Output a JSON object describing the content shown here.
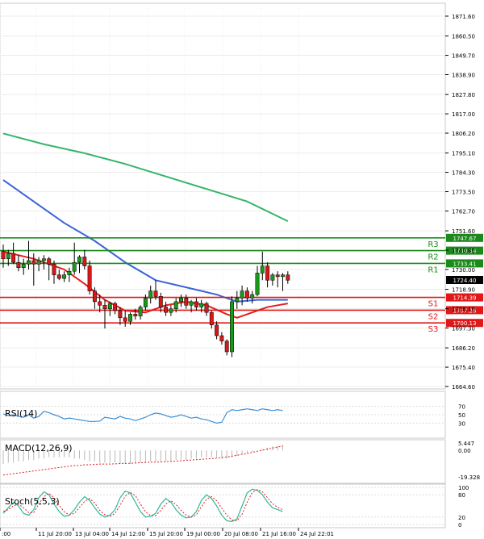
{
  "chart_data": {
    "type": "candlestick",
    "price_axis": {
      "ticks": [
        "1871.60",
        "1860.50",
        "1849.70",
        "1838.90",
        "1827.80",
        "1817.00",
        "1806.20",
        "1795.10",
        "1784.30",
        "1773.50",
        "1762.70",
        "1751.60",
        "1740.80",
        "1730.00",
        "1718.90",
        "1708.10",
        "1697.30",
        "1686.20",
        "1675.40",
        "1664.60"
      ],
      "range": [
        1664.6,
        1871.6
      ],
      "current_price": "1724.40"
    },
    "time_axis": {
      "labels": [
        ":00",
        "11 Jul 20:00",
        "13 Jul 04:00",
        "14 Jul 12:00",
        "15 Jul 20:00",
        "19 Jul 00:00",
        "20 Jul 08:00",
        "21 Jul 16:00",
        "24 Jul 22:01"
      ]
    },
    "levels": [
      {
        "name": "R3",
        "value": 1747.67,
        "label": "1747.67",
        "color": "#1a8a1a"
      },
      {
        "name": "R2",
        "value": 1740.54,
        "label": "1740.54",
        "color": "#1a8a1a"
      },
      {
        "name": "R1",
        "value": 1733.41,
        "label": "1733.41",
        "color": "#1a8a1a"
      },
      {
        "name": "S1",
        "value": 1714.39,
        "label": "1714.39",
        "color": "#e01818"
      },
      {
        "name": "S2",
        "value": 1707.26,
        "label": "1707.26",
        "color": "#e01818"
      },
      {
        "name": "S3",
        "value": 1700.13,
        "label": "1700.13",
        "color": "#e01818"
      }
    ],
    "candles": [
      {
        "o": 1740,
        "h": 1744,
        "l": 1731,
        "c": 1736
      },
      {
        "o": 1736,
        "h": 1741,
        "l": 1732,
        "c": 1739
      },
      {
        "o": 1739,
        "h": 1745,
        "l": 1733,
        "c": 1734
      },
      {
        "o": 1734,
        "h": 1738,
        "l": 1729,
        "c": 1731
      },
      {
        "o": 1731,
        "h": 1736,
        "l": 1727,
        "c": 1733
      },
      {
        "o": 1733,
        "h": 1746,
        "l": 1730,
        "c": 1735
      },
      {
        "o": 1735,
        "h": 1739,
        "l": 1721,
        "c": 1733
      },
      {
        "o": 1733,
        "h": 1737,
        "l": 1729,
        "c": 1735
      },
      {
        "o": 1735,
        "h": 1738,
        "l": 1730,
        "c": 1736
      },
      {
        "o": 1736,
        "h": 1737,
        "l": 1724,
        "c": 1733
      },
      {
        "o": 1733,
        "h": 1735,
        "l": 1722,
        "c": 1727
      },
      {
        "o": 1727,
        "h": 1730,
        "l": 1724,
        "c": 1725
      },
      {
        "o": 1725,
        "h": 1729,
        "l": 1723,
        "c": 1727
      },
      {
        "o": 1727,
        "h": 1731,
        "l": 1723,
        "c": 1729
      },
      {
        "o": 1729,
        "h": 1745,
        "l": 1727,
        "c": 1734
      },
      {
        "o": 1734,
        "h": 1738,
        "l": 1728,
        "c": 1737
      },
      {
        "o": 1737,
        "h": 1741,
        "l": 1730,
        "c": 1732
      },
      {
        "o": 1732,
        "h": 1735,
        "l": 1716,
        "c": 1718
      },
      {
        "o": 1718,
        "h": 1720,
        "l": 1708,
        "c": 1712
      },
      {
        "o": 1712,
        "h": 1716,
        "l": 1706,
        "c": 1710
      },
      {
        "o": 1710,
        "h": 1713,
        "l": 1697,
        "c": 1708
      },
      {
        "o": 1708,
        "h": 1712,
        "l": 1704,
        "c": 1711
      },
      {
        "o": 1711,
        "h": 1712,
        "l": 1705,
        "c": 1707
      },
      {
        "o": 1707,
        "h": 1709,
        "l": 1699,
        "c": 1703
      },
      {
        "o": 1703,
        "h": 1707,
        "l": 1698,
        "c": 1701
      },
      {
        "o": 1701,
        "h": 1706,
        "l": 1699,
        "c": 1705
      },
      {
        "o": 1705,
        "h": 1708,
        "l": 1702,
        "c": 1704
      },
      {
        "o": 1704,
        "h": 1710,
        "l": 1702,
        "c": 1709
      },
      {
        "o": 1709,
        "h": 1716,
        "l": 1707,
        "c": 1714
      },
      {
        "o": 1714,
        "h": 1721,
        "l": 1711,
        "c": 1718
      },
      {
        "o": 1718,
        "h": 1724,
        "l": 1713,
        "c": 1715
      },
      {
        "o": 1715,
        "h": 1717,
        "l": 1706,
        "c": 1709
      },
      {
        "o": 1709,
        "h": 1712,
        "l": 1704,
        "c": 1706
      },
      {
        "o": 1706,
        "h": 1710,
        "l": 1704,
        "c": 1708
      },
      {
        "o": 1708,
        "h": 1714,
        "l": 1706,
        "c": 1712
      },
      {
        "o": 1712,
        "h": 1716,
        "l": 1709,
        "c": 1714
      },
      {
        "o": 1714,
        "h": 1716,
        "l": 1708,
        "c": 1710
      },
      {
        "o": 1710,
        "h": 1713,
        "l": 1706,
        "c": 1712
      },
      {
        "o": 1712,
        "h": 1714,
        "l": 1707,
        "c": 1709
      },
      {
        "o": 1709,
        "h": 1713,
        "l": 1706,
        "c": 1711
      },
      {
        "o": 1711,
        "h": 1712,
        "l": 1704,
        "c": 1706
      },
      {
        "o": 1706,
        "h": 1707,
        "l": 1697,
        "c": 1699
      },
      {
        "o": 1699,
        "h": 1701,
        "l": 1691,
        "c": 1693
      },
      {
        "o": 1693,
        "h": 1695,
        "l": 1688,
        "c": 1690
      },
      {
        "o": 1690,
        "h": 1691,
        "l": 1682,
        "c": 1684
      },
      {
        "o": 1684,
        "h": 1715,
        "l": 1681,
        "c": 1712
      },
      {
        "o": 1712,
        "h": 1718,
        "l": 1708,
        "c": 1714
      },
      {
        "o": 1714,
        "h": 1721,
        "l": 1710,
        "c": 1718
      },
      {
        "o": 1718,
        "h": 1720,
        "l": 1712,
        "c": 1714
      },
      {
        "o": 1714,
        "h": 1718,
        "l": 1711,
        "c": 1716
      },
      {
        "o": 1716,
        "h": 1732,
        "l": 1715,
        "c": 1728
      },
      {
        "o": 1728,
        "h": 1740,
        "l": 1724,
        "c": 1732
      },
      {
        "o": 1732,
        "h": 1734,
        "l": 1720,
        "c": 1724
      },
      {
        "o": 1724,
        "h": 1728,
        "l": 1721,
        "c": 1727
      },
      {
        "o": 1727,
        "h": 1729,
        "l": 1720,
        "c": 1726
      },
      {
        "o": 1726,
        "h": 1728,
        "l": 1718,
        "c": 1727
      },
      {
        "o": 1727,
        "h": 1729,
        "l": 1722,
        "c": 1724
      }
    ],
    "moving_averages": [
      {
        "color": "#35b56a",
        "points": [
          [
            0,
            1806
          ],
          [
            8,
            1800
          ],
          [
            16,
            1795
          ],
          [
            24,
            1789
          ],
          [
            32,
            1782
          ],
          [
            40,
            1775
          ],
          [
            48,
            1768
          ],
          [
            56,
            1757
          ]
        ]
      },
      {
        "color": "#3b63d8",
        "points": [
          [
            0,
            1780
          ],
          [
            6,
            1768
          ],
          [
            12,
            1756
          ],
          [
            18,
            1746
          ],
          [
            24,
            1734
          ],
          [
            30,
            1724
          ],
          [
            36,
            1720
          ],
          [
            42,
            1716
          ],
          [
            46,
            1712
          ],
          [
            50,
            1713
          ],
          [
            56,
            1713
          ]
        ]
      },
      {
        "color": "#e02020",
        "points": [
          [
            0,
            1740
          ],
          [
            6,
            1736
          ],
          [
            12,
            1730
          ],
          [
            16,
            1722
          ],
          [
            20,
            1713
          ],
          [
            24,
            1707
          ],
          [
            28,
            1706
          ],
          [
            32,
            1710
          ],
          [
            36,
            1712
          ],
          [
            40,
            1710
          ],
          [
            44,
            1705
          ],
          [
            46,
            1703
          ],
          [
            48,
            1705
          ],
          [
            52,
            1709
          ],
          [
            56,
            1711
          ]
        ]
      }
    ],
    "rsi": {
      "label": "RSI(14)",
      "ticks": [
        "70",
        "50",
        "30"
      ],
      "range": [
        0,
        100
      ],
      "values": [
        52,
        48,
        50,
        46,
        44,
        50,
        42,
        46,
        58,
        55,
        50,
        46,
        40,
        42,
        40,
        38,
        36,
        34,
        34,
        35,
        44,
        42,
        40,
        46,
        42,
        40,
        36,
        40,
        44,
        50,
        54,
        52,
        48,
        44,
        46,
        50,
        46,
        42,
        44,
        40,
        38,
        34,
        30,
        32,
        55,
        62,
        60,
        62,
        64,
        62,
        60,
        64,
        62,
        60,
        62,
        60
      ]
    },
    "macd": {
      "label": "MACD(12,26,9)",
      "ticks": [
        "5.447",
        "0.00",
        "-19.328"
      ],
      "range": [
        -19.328,
        5.447
      ],
      "histogram": [
        -10,
        -9,
        -9,
        -8,
        -8,
        -7,
        -7,
        -6,
        -6,
        -5,
        -5,
        -5,
        -5,
        -5,
        -6,
        -6,
        -7,
        -8,
        -8,
        -9,
        -9,
        -9,
        -9,
        -10,
        -10,
        -10,
        -9,
        -9,
        -9,
        -8,
        -8,
        -8,
        -8,
        -8,
        -7,
        -7,
        -7,
        -6,
        -6,
        -5,
        -5,
        -5,
        -5,
        -6,
        -6,
        -5,
        -4,
        -3,
        -2,
        -1,
        0,
        1,
        2,
        3,
        3,
        4
      ],
      "signal": [
        -18,
        -17.5,
        -17,
        -16.5,
        -16,
        -15.5,
        -15,
        -14.5,
        -14,
        -13.5,
        -13,
        -12.5,
        -12,
        -11.5,
        -11,
        -11,
        -10.5,
        -10.5,
        -10.2,
        -10,
        -10,
        -10,
        -9.8,
        -9.6,
        -9.5,
        -9.4,
        -9.2,
        -9,
        -8.8,
        -8.6,
        -8.5,
        -8.4,
        -8.2,
        -8,
        -7.8,
        -7.6,
        -7.2,
        -7,
        -6.8,
        -6.5,
        -6.2,
        -6,
        -5.6,
        -5.2,
        -4.8,
        -4.2,
        -3.6,
        -2.8,
        -2.2,
        -1.4,
        -0.6,
        0.2,
        1,
        1.8,
        2.5,
        3.2
      ]
    },
    "stoch": {
      "label": "Stoch(5,5,3)",
      "ticks": [
        "100",
        "80",
        "20",
        "0"
      ],
      "range": [
        0,
        100
      ],
      "k": [
        30,
        45,
        60,
        50,
        30,
        25,
        40,
        72,
        88,
        80,
        55,
        35,
        22,
        25,
        40,
        60,
        75,
        65,
        45,
        28,
        20,
        25,
        40,
        72,
        90,
        85,
        60,
        35,
        20,
        22,
        30,
        55,
        70,
        60,
        40,
        25,
        18,
        20,
        35,
        65,
        80,
        70,
        50,
        25,
        10,
        8,
        15,
        50,
        85,
        95,
        92,
        80,
        60,
        45,
        40,
        35
      ],
      "d": [
        35,
        40,
        50,
        55,
        45,
        32,
        32,
        55,
        75,
        84,
        72,
        52,
        34,
        26,
        30,
        46,
        62,
        70,
        58,
        38,
        26,
        22,
        30,
        52,
        76,
        86,
        78,
        55,
        34,
        24,
        24,
        38,
        55,
        64,
        54,
        38,
        25,
        20,
        26,
        48,
        68,
        75,
        64,
        44,
        25,
        12,
        10,
        28,
        60,
        86,
        94,
        88,
        72,
        56,
        46,
        40
      ]
    }
  }
}
